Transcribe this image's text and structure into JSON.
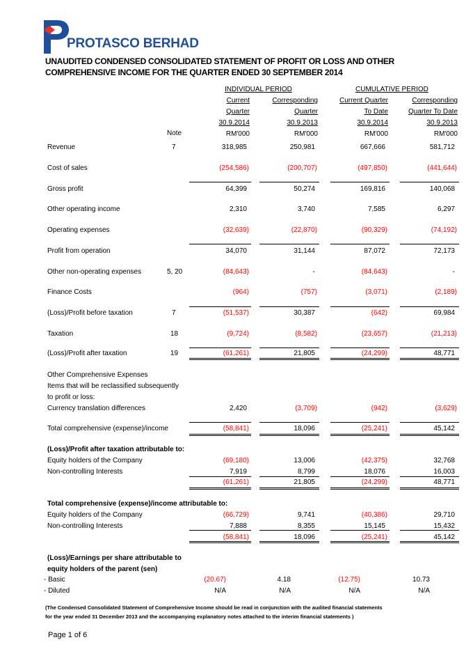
{
  "company": "PROTASCO BERHAD",
  "title": [
    "UNAUDITED CONDENSED CONSOLIDATED STATEMENT OF PROFIT OR LOSS AND OTHER",
    "COMPREHENSIVE INCOME FOR THE QUARTER ENDED 30 SEPTEMBER 2014"
  ],
  "groups": [
    "INDIVIDUAL PERIOD",
    "CUMULATIVE PERIOD"
  ],
  "columns": [
    {
      "l1": "Current",
      "l2": "Quarter",
      "date": "30.9.2014",
      "unit": "RM'000"
    },
    {
      "l1": "Corresponding",
      "l2": "Quarter",
      "date": "30.9.2013",
      "unit": "RM'000"
    },
    {
      "l1": "Current Quarter",
      "l2": "To Date",
      "date": "30.9.2014",
      "unit": "RM'000"
    },
    {
      "l1": "Corresponding",
      "l2": "Quarter To Date",
      "date": "30.9.2013",
      "unit": "RM'000"
    }
  ],
  "note_header": "Note",
  "rows": [
    {
      "label": "Revenue",
      "note": "7",
      "values": [
        "318,985",
        "250,981",
        "667,666",
        "581,712"
      ]
    },
    {
      "label": "Cost of sales",
      "note": "",
      "values": [
        "(254,586)",
        "(200,707)",
        "(497,850)",
        "(441,644)"
      ]
    },
    {
      "label": "Gross profit",
      "note": "",
      "values": [
        "64,399",
        "50,274",
        "169,816",
        "140,068"
      ]
    },
    {
      "label": "Other operating income",
      "note": "",
      "values": [
        "2,310",
        "3,740",
        "7,585",
        "6,297"
      ]
    },
    {
      "label": "Operating expenses",
      "note": "",
      "values": [
        "(32,639)",
        "(22,870)",
        "(90,329)",
        "(74,192)"
      ]
    },
    {
      "label": "Profit from operation",
      "note": "",
      "values": [
        "34,070",
        "31,144",
        "87,072",
        "72,173"
      ]
    },
    {
      "label": "Other non-operating expenses",
      "note": "5, 20",
      "values": [
        "(84,643)",
        "-",
        "(84,643)",
        "-"
      ]
    },
    {
      "label": "Finance Costs",
      "note": "",
      "values": [
        "(964)",
        "(757)",
        "(3,071)",
        "(2,189)"
      ]
    },
    {
      "label": "(Loss)/Profit before taxation",
      "note": "7",
      "values": [
        "(51,537)",
        "30,387",
        "(642)",
        "69,984"
      ]
    },
    {
      "label": "Taxation",
      "note": "18",
      "values": [
        "(9,724)",
        "(8,582)",
        "(23,657)",
        "(21,213)"
      ]
    },
    {
      "label": "(Loss)/Profit after taxation",
      "note": "19",
      "values": [
        "(61,261)",
        "21,805",
        "(24,299)",
        "48,771"
      ]
    },
    {
      "label": "Other Comprehensive Expenses",
      "note": "",
      "values": []
    },
    {
      "label": "Items that will be reclassified subsequently",
      "note": "",
      "values": []
    },
    {
      "label": "to profit or loss:",
      "note": "",
      "values": []
    },
    {
      "label": "Currency translation differences",
      "note": "",
      "values": [
        "2,420",
        "(3,709)",
        "(942)",
        "(3,629)"
      ]
    },
    {
      "label": "Total comprehensive (expense)/income",
      "note": "",
      "values": [
        "(58,841)",
        "18,096",
        "(25,241)",
        "45,142"
      ]
    },
    {
      "label": "(Loss)/Profit after taxation attributable to:",
      "note": "",
      "bold": true,
      "values": []
    },
    {
      "label": "Equity holders of the Company",
      "note": "",
      "values": [
        "(69,180)",
        "13,006",
        "(42,375)",
        "32,768"
      ]
    },
    {
      "label": "Non-controlling Interests",
      "note": "",
      "values": [
        "7,919",
        "8,799",
        "18,076",
        "16,003"
      ]
    },
    {
      "label": "",
      "note": "",
      "values": [
        "(61,261)",
        "21,805",
        "(24,299)",
        "48,771"
      ]
    },
    {
      "label": "Total comprehensive (expense)/income attributable to:",
      "note": "",
      "bold": true,
      "values": []
    },
    {
      "label": "Equity holders of the Company",
      "note": "",
      "values": [
        "(66,729)",
        "9,741",
        "(40,386)",
        "29,710"
      ]
    },
    {
      "label": "Non-controlling Interests",
      "note": "",
      "values": [
        "7,888",
        "8,355",
        "15,145",
        "15,432"
      ]
    },
    {
      "label": "",
      "note": "",
      "values": [
        "(58,841)",
        "18,096",
        "(25,241)",
        "45,142"
      ]
    },
    {
      "label": "(Loss)/Earnings per share attributable to",
      "note": "",
      "bold": true,
      "values": []
    },
    {
      "label": " equity holders of the parent (sen)",
      "note": "",
      "bold": true,
      "values": []
    },
    {
      "label": "- Basic",
      "note": "",
      "eps": true,
      "values": [
        "(20.67)",
        "4.18",
        "(12.75)",
        "10.73"
      ]
    },
    {
      "label": "- Diluted",
      "note": "",
      "eps": true,
      "values": [
        "N/A",
        "N/A",
        "N/A",
        "N/A"
      ]
    }
  ],
  "footnote": [
    "(The Condensed Consolidated Statement of Comprehensive Income should be read in conjunction with the audited financial statements",
    "for the year ended 31 December 2013 and the accompanying explanatory notes attached to the interim financial statements )"
  ],
  "page": "Page 1 of 6",
  "colors": {
    "brand_blue": "#1f4e9c",
    "brand_red": "#e8312f",
    "negative": "#ff0000"
  }
}
